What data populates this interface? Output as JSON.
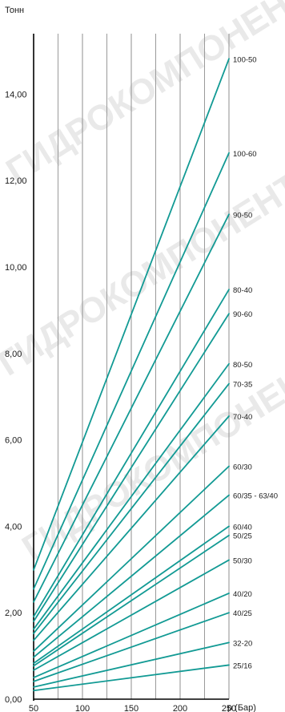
{
  "chart_data": {
    "type": "line",
    "ylabel": "Тонн",
    "xlabel": "р (Бар)",
    "xlim": [
      50,
      250
    ],
    "ylim": [
      0,
      15.4
    ],
    "xticks": [
      50,
      100,
      150,
      200,
      250
    ],
    "yticks": [
      "0,00",
      "2,00",
      "4,00",
      "6,00",
      "8,00",
      "10,00",
      "12,00",
      "14,00"
    ],
    "ytick_values": [
      0,
      2,
      4,
      6,
      8,
      10,
      12,
      14
    ],
    "grid": {
      "vertical": true,
      "horizontal": false
    },
    "line_color": "#129a94",
    "series": [
      {
        "name": "100-50",
        "x": [
          50,
          250
        ],
        "y": [
          2.99,
          14.82
        ]
      },
      {
        "name": "100-60",
        "x": [
          50,
          250
        ],
        "y": [
          2.55,
          12.64
        ]
      },
      {
        "name": "90-50",
        "x": [
          50,
          250
        ],
        "y": [
          2.25,
          11.22
        ]
      },
      {
        "name": "80-40",
        "x": [
          50,
          250
        ],
        "y": [
          1.91,
          9.48
        ]
      },
      {
        "name": "90-60",
        "x": [
          50,
          250
        ],
        "y": [
          1.8,
          8.92
        ]
      },
      {
        "name": "80-50",
        "x": [
          50,
          250
        ],
        "y": [
          1.62,
          7.76
        ]
      },
      {
        "name": "70-35",
        "x": [
          50,
          250
        ],
        "y": [
          1.52,
          7.3
        ]
      },
      {
        "name": "70-40",
        "x": [
          50,
          250
        ],
        "y": [
          1.36,
          6.55
        ]
      },
      {
        "name": "60/30",
        "x": [
          50,
          250
        ],
        "y": [
          1.11,
          5.39
        ]
      },
      {
        "name": "60/35 - 63/40",
        "x": [
          50,
          250
        ],
        "y": [
          0.97,
          4.72
        ]
      },
      {
        "name": "60/40",
        "x": [
          50,
          250
        ],
        "y": [
          0.83,
          4.0
        ]
      },
      {
        "name": "50/25",
        "x": [
          50,
          250
        ],
        "y": [
          0.77,
          3.79
        ]
      },
      {
        "name": "50/30",
        "x": [
          50,
          250
        ],
        "y": [
          0.67,
          3.22
        ]
      },
      {
        "name": "40/20",
        "x": [
          50,
          250
        ],
        "y": [
          0.5,
          2.45
        ]
      },
      {
        "name": "40/25",
        "x": [
          50,
          250
        ],
        "y": [
          0.41,
          2.0
        ]
      },
      {
        "name": "32-20",
        "x": [
          50,
          250
        ],
        "y": [
          0.28,
          1.31
        ]
      },
      {
        "name": "25/16",
        "x": [
          50,
          250
        ],
        "y": [
          0.2,
          0.79
        ]
      }
    ],
    "watermark_text": [
      "ГИДРОКОМПОНЕНТЫ.РФ",
      "ГИДРОКОМПОНЕНТЫ.РФ",
      "ГИДРОКОМПОНЕНТЫ.РФ"
    ]
  }
}
